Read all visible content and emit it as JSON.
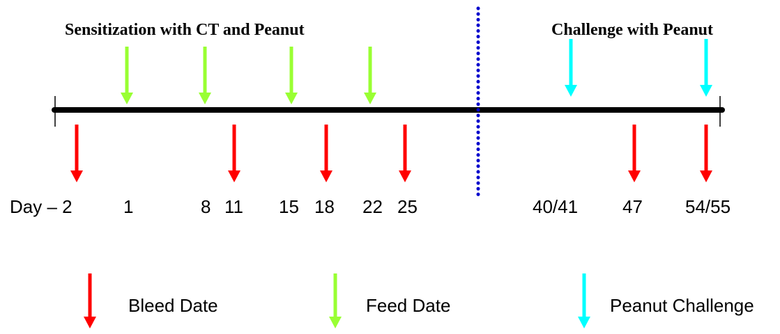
{
  "headings": {
    "sensitization": "Sensitization with CT and Peanut",
    "challenge": "Challenge with Peanut"
  },
  "day_labels": [
    "Day – 2",
    "1",
    "8",
    "11",
    "15",
    "18",
    "22",
    "25",
    "40/41",
    "47",
    "54/55"
  ],
  "legend": {
    "bleed": "Bleed Date",
    "feed": "Feed Date",
    "challenge": "Peanut Challenge"
  },
  "colors": {
    "bleed": "#ff0000",
    "feed": "#99ff33",
    "challenge": "#00ffff",
    "divider": "#0000cc",
    "timeline": "#000000"
  }
}
